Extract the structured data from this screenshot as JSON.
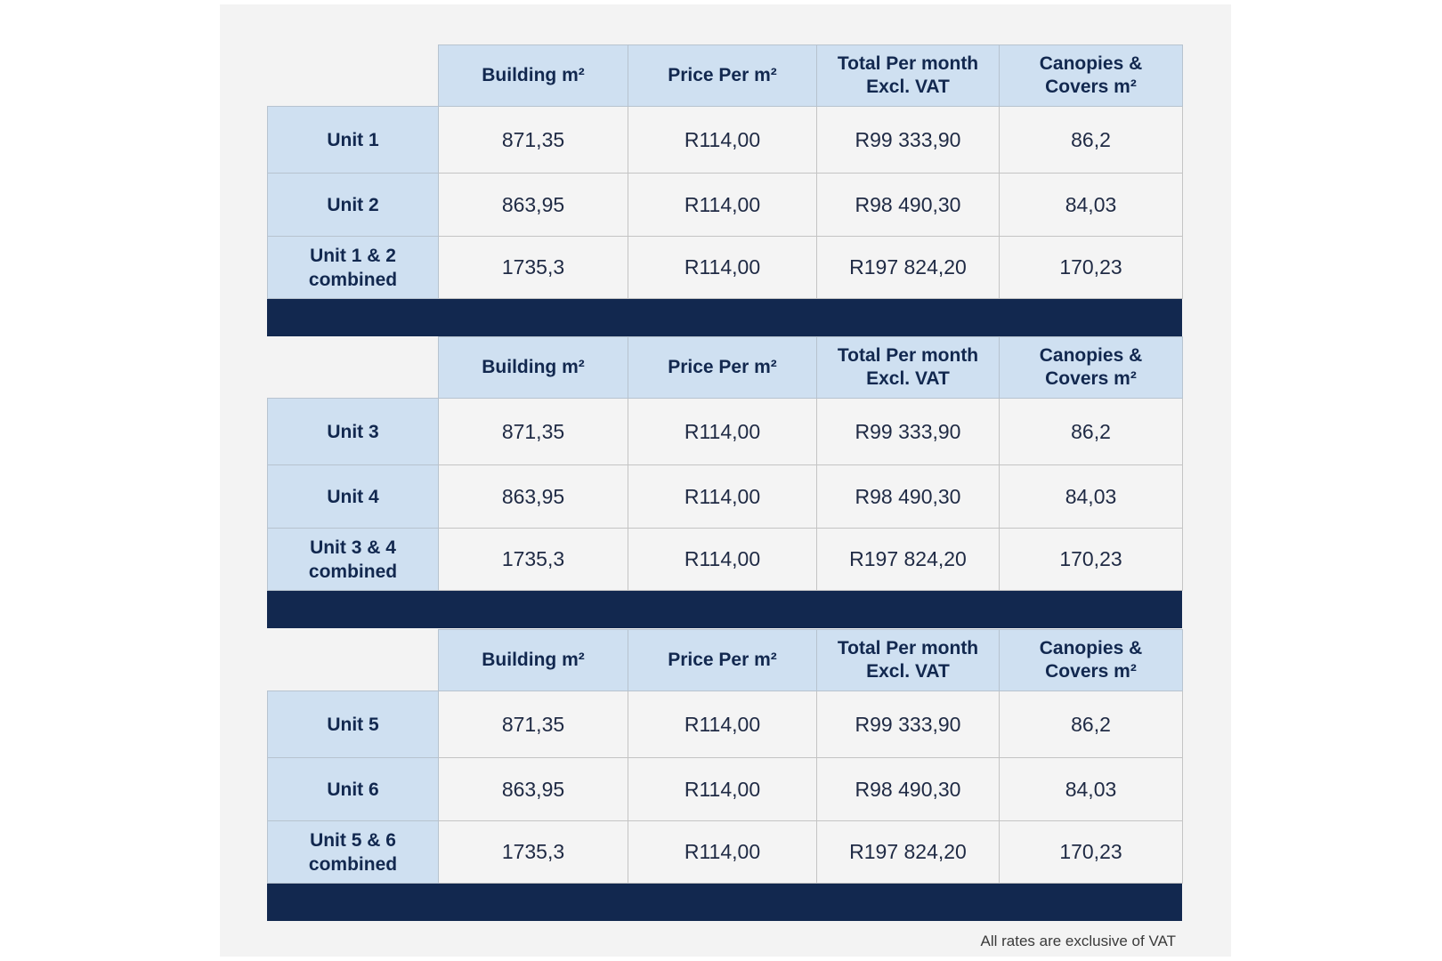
{
  "colors": {
    "panel_bg": "#f3f3f3",
    "header_bg": "#cfe0f1",
    "navy": "#12284f",
    "cell_bg": "#f4f4f4"
  },
  "columns": [
    "Building m²",
    "Price Per m²",
    "Total Per month\nExcl. VAT",
    "Canopies &\nCovers m²"
  ],
  "tables": [
    {
      "rows": [
        {
          "label": "Unit 1",
          "values": [
            "871,35",
            "R114,00",
            "R99 333,90",
            "86,2"
          ]
        },
        {
          "label": "Unit 2",
          "values": [
            "863,95",
            "R114,00",
            "R98 490,30",
            "84,03"
          ]
        },
        {
          "label": "Unit 1 & 2 combined",
          "values": [
            "1735,3",
            "R114,00",
            "R197 824,20",
            "170,23"
          ]
        }
      ]
    },
    {
      "rows": [
        {
          "label": "Unit 3",
          "values": [
            "871,35",
            "R114,00",
            "R99 333,90",
            "86,2"
          ]
        },
        {
          "label": "Unit 4",
          "values": [
            "863,95",
            "R114,00",
            "R98 490,30",
            "84,03"
          ]
        },
        {
          "label": "Unit 3 & 4 combined",
          "values": [
            "1735,3",
            "R114,00",
            "R197 824,20",
            "170,23"
          ]
        }
      ]
    },
    {
      "rows": [
        {
          "label": "Unit 5",
          "values": [
            "871,35",
            "R114,00",
            "R99 333,90",
            "86,2"
          ]
        },
        {
          "label": "Unit 6",
          "values": [
            "863,95",
            "R114,00",
            "R98 490,30",
            "84,03"
          ]
        },
        {
          "label": "Unit 5 & 6 combined",
          "values": [
            "1735,3",
            "R114,00",
            "R197 824,20",
            "170,23"
          ]
        }
      ]
    }
  ],
  "footnote": "All rates are exclusive of VAT"
}
